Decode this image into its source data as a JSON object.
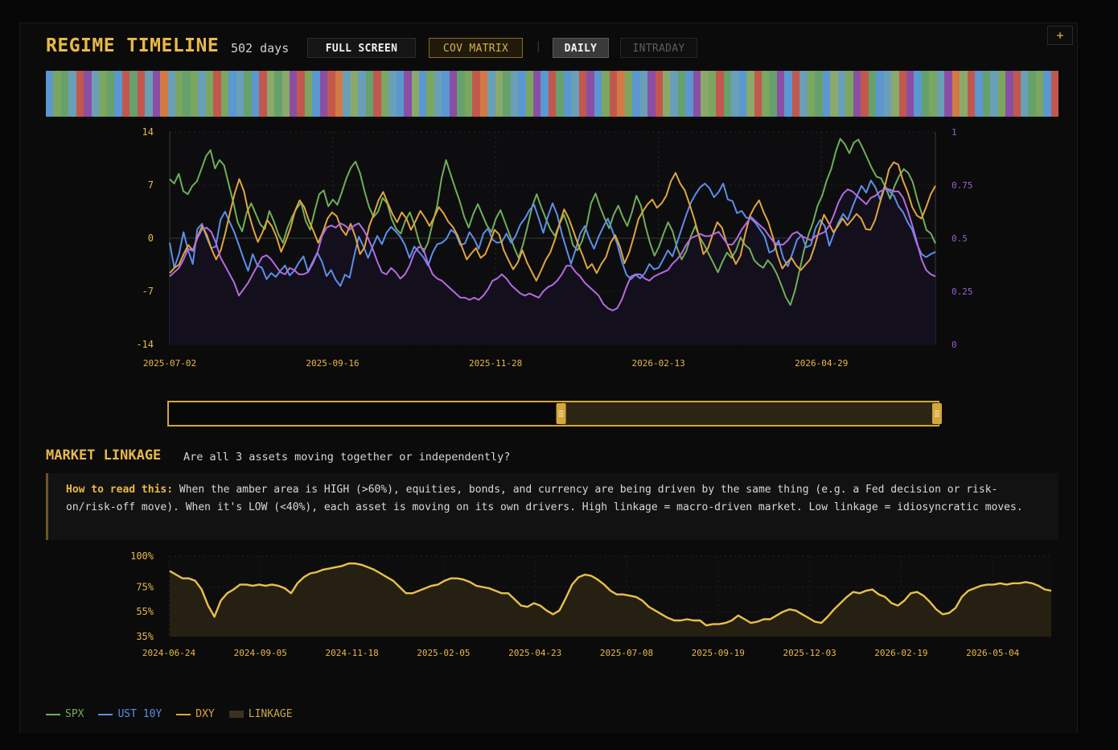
{
  "header": {
    "title": "REGIME TIMELINE",
    "days": "502 days",
    "buttons": {
      "full_screen": "FULL SCREEN",
      "cov_matrix": "COV MATRIX",
      "separator": "|",
      "daily": "DAILY",
      "intraday": "INTRADAY"
    },
    "plus": "+"
  },
  "colors": {
    "accent": "#e8b94a",
    "spx": "#6fae57",
    "ust": "#5b8fe8",
    "dxy": "#e0a53f",
    "linkage_line": "#e8c04c",
    "linkage_fill": "#2b2414",
    "regime_palette": [
      "#5b97d0",
      "#7ba65f",
      "#8a4fa4",
      "#c2584d",
      "#6a9fb8",
      "#d27a45",
      "#66a06d",
      "#8ba96a"
    ]
  },
  "regimes": [
    0,
    1,
    6,
    4,
    3,
    2,
    4,
    1,
    6,
    0,
    3,
    6,
    3,
    4,
    2,
    5,
    4,
    1,
    6,
    1,
    4,
    1,
    3,
    1,
    0,
    4,
    6,
    0,
    3,
    7,
    6,
    7,
    2,
    3,
    1,
    0,
    2,
    3,
    5,
    4,
    7,
    4,
    6,
    3,
    1,
    4,
    0,
    2,
    7,
    0,
    1,
    4,
    0,
    2,
    6,
    1,
    3,
    5,
    4,
    7,
    6,
    4,
    0,
    1,
    2,
    0,
    3,
    6,
    0,
    4,
    3,
    2,
    0,
    1,
    3,
    5,
    1,
    0,
    4,
    2,
    3,
    7,
    4,
    6,
    0,
    2,
    7,
    1,
    3,
    6,
    4,
    0,
    7,
    3,
    1,
    6,
    2,
    0,
    3,
    4,
    1,
    6,
    0,
    7,
    4,
    1,
    2,
    3,
    6,
    0,
    4,
    7,
    3,
    2,
    0,
    6,
    1,
    4,
    2,
    5,
    7,
    3,
    0,
    6,
    4,
    1,
    2,
    3,
    4,
    6,
    1,
    0,
    3
  ],
  "chart_data": [
    {
      "type": "line",
      "title": "",
      "x_tick_labels": [
        "2025-07-02",
        "2025-09-16",
        "2025-11-28",
        "2026-02-13",
        "2026-04-29"
      ],
      "y_left": {
        "ticks": [
          14,
          7,
          0,
          -7,
          -14
        ],
        "range": [
          -14,
          14
        ]
      },
      "y_right": {
        "ticks": [
          "1",
          "0.75",
          "0.5",
          "0.25",
          "0"
        ],
        "range": [
          0,
          1
        ]
      },
      "grid": true,
      "series": [
        {
          "name": "SPX",
          "axis": "left",
          "color": "#6fae57",
          "values": [
            7.8,
            7.2,
            8.5,
            6.2,
            5.8,
            6.9,
            7.5,
            9.1,
            10.8,
            11.6,
            9.2,
            10.3,
            9.6,
            7.2,
            4.8,
            2.1,
            0.9,
            3.4,
            4.6,
            3.2,
            1.8,
            1.2,
            3.6,
            2.2,
            0.5,
            -0.6,
            1.4,
            2.8,
            3.9,
            4.7,
            2.3,
            1.1,
            3.6,
            5.8,
            6.3,
            4.2,
            5.1,
            4.4,
            6.1,
            7.9,
            9.3,
            10.1,
            8.6,
            6.2,
            4.1,
            2.8,
            3.5,
            5.3,
            4.6,
            2.5,
            1.2,
            0.6,
            2.3,
            3.4,
            1.8,
            -0.4,
            -1.8,
            -0.6,
            1.9,
            4.2,
            7.9,
            10.3,
            8.4,
            6.6,
            4.9,
            2.8,
            1.4,
            3.2,
            4.5,
            3.1,
            1.7,
            0.8,
            2.6,
            3.7,
            2.1,
            0.5,
            -1.2,
            -2.6,
            -0.8,
            1.6,
            4.2,
            5.8,
            4.1,
            2.6,
            1.2,
            0.3,
            1.8,
            3.1,
            1.4,
            -0.9,
            -1.6,
            -0.4,
            1.6,
            4.6,
            5.9,
            4.1,
            2.6,
            1.3,
            3.1,
            4.3,
            2.8,
            1.6,
            3.4,
            5.6,
            4.3,
            1.6,
            -0.6,
            -2.3,
            -1.1,
            0.6,
            2.1,
            0.9,
            -1.3,
            -2.8,
            -1.7,
            0.2,
            1.6,
            0.1,
            -0.9,
            -2.1,
            -3.3,
            -4.5,
            -3.1,
            -1.9,
            -2.6,
            -1.6,
            0.1,
            -0.9,
            -1.4,
            -2.9,
            -3.5,
            -3.9,
            -2.9,
            -3.6,
            -4.7,
            -6.2,
            -7.8,
            -8.8,
            -6.9,
            -4.3,
            -1.6,
            0.5,
            2.1,
            4.3,
            5.6,
            7.6,
            9.1,
            11.4,
            13.1,
            12.4,
            11.2,
            12.6,
            13.0,
            11.8,
            10.5,
            9.2,
            8.1,
            7.9,
            6.7,
            5.2,
            6.9,
            8.2,
            9.1,
            8.6,
            7.4,
            5.1,
            3.2,
            1.1,
            0.6,
            -0.7
          ]
        },
        {
          "name": "UST 10Y",
          "axis": "left",
          "color": "#5b8fe8",
          "values": [
            -0.6,
            -3.9,
            -2.1,
            0.8,
            -1.6,
            -3.4,
            1.2,
            1.9,
            0.1,
            -1.3,
            -1.1,
            2.4,
            3.5,
            2.1,
            0.8,
            -0.9,
            -2.7,
            -4.3,
            -2.1,
            -3.6,
            -3.9,
            -5.4,
            -4.6,
            -5.1,
            -4.3,
            -3.6,
            -4.9,
            -4.3,
            -3.2,
            -2.4,
            -4.4,
            -3.1,
            -1.9,
            -3.1,
            -5.0,
            -4.2,
            -5.5,
            -6.3,
            -4.8,
            -5.2,
            -2.3,
            0.2,
            -1.1,
            -2.6,
            -1.1,
            0.3,
            -0.8,
            0.7,
            1.5,
            0.9,
            0.2,
            -0.9,
            -2.6,
            -1.1,
            -1.8,
            -2.5,
            -3.6,
            -1.9,
            -0.8,
            -0.6,
            -0.1,
            1.1,
            0.6,
            -0.9,
            -0.7,
            0.8,
            -0.1,
            -1.4,
            0.6,
            1.3,
            -0.2,
            -0.6,
            -0.5,
            0.6,
            -0.6,
            0.3,
            1.8,
            2.6,
            3.7,
            4.4,
            2.6,
            0.7,
            2.9,
            4.6,
            3.1,
            0.6,
            -1.4,
            -3.4,
            -1.5,
            0.6,
            1.6,
            -0.1,
            -1.4,
            0.2,
            1.5,
            2.6,
            0.9,
            -0.7,
            -3.0,
            -4.8,
            -5.4,
            -4.8,
            -5.3,
            -4.6,
            -3.4,
            -4.1,
            -3.9,
            -2.8,
            -1.6,
            -2.4,
            -0.6,
            1.3,
            3.1,
            4.7,
            5.8,
            6.7,
            7.2,
            6.6,
            5.4,
            6.1,
            7.2,
            5.1,
            4.9,
            3.3,
            3.6,
            2.7,
            2.6,
            2.0,
            1.1,
            0.2,
            -1.9,
            -1.6,
            -0.3,
            -2.6,
            -3.7,
            -2.0,
            -0.2,
            0.4,
            -1.2,
            -0.9,
            1.3,
            2.4,
            1.6,
            -1.0,
            0.6,
            2.1,
            3.2,
            2.4,
            4.1,
            5.6,
            6.9,
            6.0,
            7.6,
            6.7,
            5.1,
            6.9,
            6.2,
            5.6,
            4.2,
            3.4,
            2.1,
            1.1,
            -0.8,
            -2.1,
            -2.5,
            -2.1,
            -1.8
          ]
        },
        {
          "name": "DXY",
          "axis": "left",
          "color": "#e0a53f",
          "values": [
            -4.6,
            -3.9,
            -3.5,
            -2.1,
            -0.9,
            -1.6,
            0.2,
            1.6,
            0.4,
            -1.4,
            -2.8,
            -1.6,
            0.7,
            3.4,
            5.9,
            7.8,
            6.2,
            3.3,
            1.2,
            -0.5,
            0.8,
            2.4,
            1.6,
            0.2,
            -1.8,
            -0.4,
            1.3,
            3.6,
            5.0,
            4.1,
            2.3,
            0.9,
            -0.6,
            0.8,
            2.6,
            3.4,
            2.9,
            1.2,
            0.4,
            1.9,
            0.2,
            -2.1,
            -1.2,
            1.6,
            3.2,
            5.0,
            6.1,
            4.6,
            3.2,
            2.1,
            3.4,
            2.6,
            1.1,
            2.3,
            3.6,
            2.7,
            1.6,
            2.8,
            4.1,
            3.3,
            2.2,
            1.5,
            0.4,
            -1.2,
            -2.8,
            -2.0,
            -1.3,
            -2.6,
            -2.1,
            -0.6,
            1.1,
            0.5,
            -1.6,
            -2.9,
            -4.1,
            -3.2,
            -1.6,
            -3.2,
            -4.4,
            -5.6,
            -4.3,
            -2.9,
            -1.9,
            -0.2,
            1.9,
            3.8,
            2.6,
            0.9,
            -0.8,
            -2.3,
            -4.0,
            -3.4,
            -4.6,
            -3.4,
            -2.5,
            -0.6,
            0.4,
            -1.1,
            -3.3,
            -1.9,
            0.2,
            2.5,
            3.6,
            4.5,
            5.1,
            4.0,
            4.6,
            5.6,
            7.5,
            8.6,
            7.2,
            6.3,
            4.5,
            2.6,
            0.4,
            -2.1,
            -1.3,
            0.5,
            2.1,
            1.4,
            -0.6,
            -2.0,
            -3.4,
            -2.3,
            0.5,
            2.9,
            4.1,
            5.0,
            3.4,
            2.1,
            0.1,
            -2.3,
            -4.0,
            -3.2,
            -2.6,
            -3.6,
            -4.2,
            -3.5,
            -2.8,
            -1.0,
            1.2,
            3.1,
            2.0,
            0.8,
            1.6,
            2.6,
            1.7,
            2.4,
            3.2,
            2.6,
            1.2,
            1.1,
            2.4,
            4.6,
            6.6,
            9.1,
            10.0,
            9.7,
            7.6,
            6.1,
            4.1,
            3.0,
            2.6,
            4.1,
            5.8,
            6.9
          ]
        },
        {
          "name": "",
          "axis": "right",
          "color": "#b46be0",
          "values": [
            0.32,
            0.34,
            0.36,
            0.4,
            0.45,
            0.44,
            0.5,
            0.54,
            0.55,
            0.53,
            0.48,
            0.41,
            0.37,
            0.33,
            0.29,
            0.23,
            0.26,
            0.29,
            0.33,
            0.37,
            0.41,
            0.42,
            0.4,
            0.37,
            0.34,
            0.33,
            0.36,
            0.35,
            0.33,
            0.33,
            0.34,
            0.38,
            0.43,
            0.51,
            0.55,
            0.56,
            0.55,
            0.57,
            0.56,
            0.54,
            0.56,
            0.57,
            0.54,
            0.5,
            0.45,
            0.39,
            0.34,
            0.33,
            0.36,
            0.34,
            0.31,
            0.33,
            0.37,
            0.43,
            0.46,
            0.45,
            0.38,
            0.33,
            0.31,
            0.3,
            0.28,
            0.26,
            0.24,
            0.22,
            0.22,
            0.21,
            0.22,
            0.21,
            0.23,
            0.26,
            0.3,
            0.31,
            0.33,
            0.31,
            0.28,
            0.26,
            0.24,
            0.23,
            0.24,
            0.23,
            0.22,
            0.25,
            0.27,
            0.28,
            0.3,
            0.33,
            0.37,
            0.37,
            0.34,
            0.32,
            0.29,
            0.27,
            0.25,
            0.23,
            0.19,
            0.17,
            0.16,
            0.17,
            0.21,
            0.27,
            0.32,
            0.33,
            0.33,
            0.31,
            0.3,
            0.32,
            0.33,
            0.34,
            0.35,
            0.38,
            0.4,
            0.43,
            0.47,
            0.5,
            0.51,
            0.52,
            0.51,
            0.51,
            0.52,
            0.53,
            0.5,
            0.47,
            0.47,
            0.5,
            0.54,
            0.57,
            0.6,
            0.58,
            0.56,
            0.54,
            0.51,
            0.48,
            0.47,
            0.47,
            0.49,
            0.52,
            0.53,
            0.51,
            0.5,
            0.49,
            0.51,
            0.52,
            0.53,
            0.56,
            0.61,
            0.67,
            0.71,
            0.73,
            0.72,
            0.7,
            0.68,
            0.66,
            0.69,
            0.7,
            0.72,
            0.73,
            0.73,
            0.72,
            0.72,
            0.69,
            0.63,
            0.56,
            0.48,
            0.4,
            0.35,
            0.33,
            0.32
          ]
        }
      ]
    },
    {
      "type": "area",
      "title": "",
      "x_tick_labels": [
        "2024-06-24",
        "2024-09-05",
        "2024-11-18",
        "2025-02-05",
        "2025-04-23",
        "2025-07-08",
        "2025-09-19",
        "2025-12-03",
        "2026-02-19",
        "2026-05-04"
      ],
      "y_tick_labels": [
        "100%",
        "75%",
        "55%",
        "35%"
      ],
      "ylim": [
        35,
        100
      ],
      "series": [
        {
          "name": "LINKAGE",
          "color": "#e8c04c",
          "values": [
            88,
            85,
            82,
            82,
            80,
            73,
            60,
            51,
            64,
            70,
            73,
            77,
            77,
            76,
            77,
            76,
            77,
            76,
            74,
            70,
            78,
            83,
            86,
            87,
            89,
            90,
            91,
            92,
            94,
            94,
            93,
            91,
            89,
            86,
            83,
            80,
            75,
            70,
            70,
            72,
            74,
            76,
            77,
            80,
            82,
            82,
            81,
            79,
            76,
            75,
            74,
            72,
            70,
            70,
            65,
            60,
            59,
            62,
            60,
            56,
            53,
            56,
            66,
            77,
            83,
            85,
            84,
            81,
            77,
            72,
            69,
            69,
            68,
            67,
            64,
            59,
            56,
            53,
            50,
            48,
            48,
            49,
            48,
            48,
            44,
            45,
            45,
            46,
            48,
            52,
            49,
            46,
            47,
            49,
            49,
            52,
            55,
            57,
            56,
            53,
            50,
            47,
            46,
            51,
            57,
            62,
            67,
            71,
            70,
            72,
            73,
            69,
            67,
            62,
            60,
            64,
            70,
            71,
            68,
            63,
            57,
            53,
            54,
            58,
            67,
            72,
            74,
            76,
            77,
            77,
            78,
            77,
            78,
            78,
            79,
            78,
            76,
            73,
            72
          ]
        }
      ]
    }
  ],
  "range_slider": {
    "selection_start": 0.51,
    "selection_end": 1.0
  },
  "linkage": {
    "title": "MARKET LINKAGE",
    "subtitle": "Are all 3 assets moving together or independently?",
    "howto_label": "How to read this:",
    "howto_text": " When the amber area is HIGH (>60%), equities, bonds, and currency are being driven by the same thing (e.g. a Fed decision or risk-on/risk-off move). When it's LOW (<40%), each asset is moving on its own drivers. High linkage = macro-driven market. Low linkage = idiosyncratic moves."
  },
  "legend": {
    "spx": "SPX",
    "ust": "UST 10Y",
    "dxy": "DXY",
    "linkage": "LINKAGE"
  }
}
